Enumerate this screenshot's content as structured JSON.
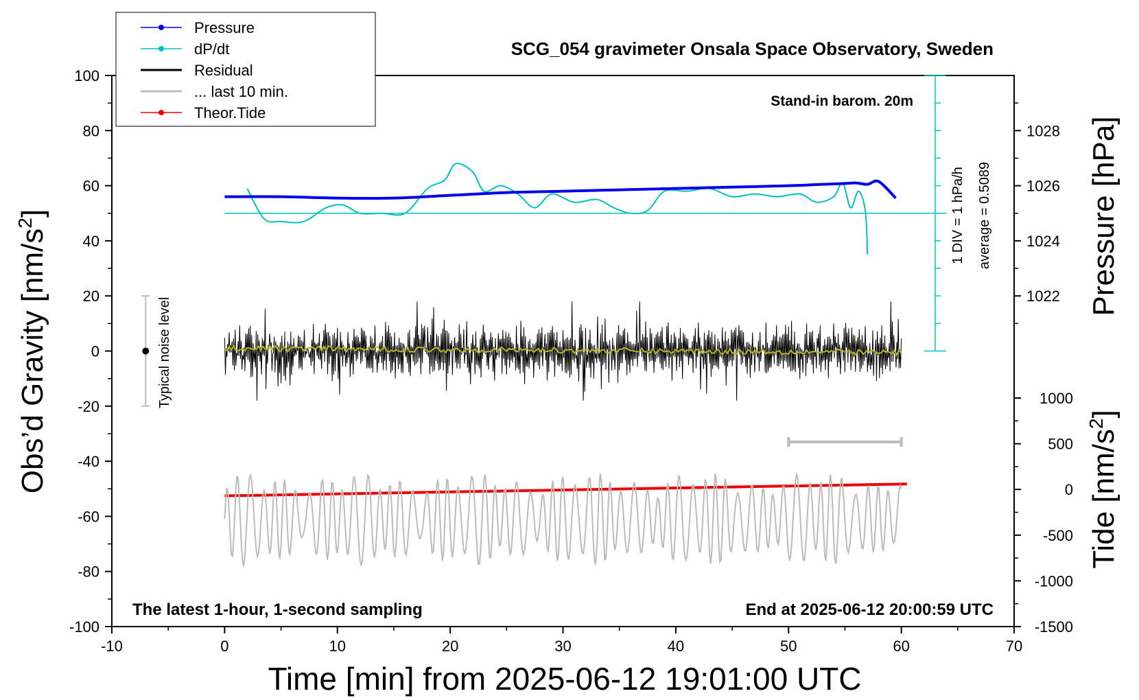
{
  "chart_data": {
    "type": "line",
    "title": "SCG_054 gravimeter Onsala Space Observatory, Sweden",
    "xlabel": "Time [min] from 2025-06-12 19:01:00 UTC",
    "ylabel_left": "Obs’d Gravity [nm/s",
    "ylabel_left_sup": "2",
    "ylabel_left_close": "]",
    "ylabel_right_pressure": "Pressure [hPa]",
    "ylabel_right_tide": "Tide [nm/s",
    "ylabel_right_tide_sup": "2",
    "ylabel_right_tide_close": "]",
    "xlim": [
      -10,
      70
    ],
    "ylim": [
      -100,
      100
    ],
    "pressure_lim": [
      1020,
      1030
    ],
    "tide_lim": [
      -1500,
      1500
    ],
    "x_ticks": [
      "-10",
      "0",
      "10",
      "20",
      "30",
      "40",
      "50",
      "60",
      "70"
    ],
    "y_ticks": [
      "-100",
      "-80",
      "-60",
      "-40",
      "-20",
      "0",
      "20",
      "40",
      "60",
      "80",
      "100"
    ],
    "pressure_ticks": [
      "1022",
      "1024",
      "1026",
      "1028"
    ],
    "tide_ticks": [
      "-1500",
      "-1000",
      "-500",
      "0",
      "500",
      "1000"
    ],
    "grid": false,
    "legend_position": "top-left",
    "legend": [
      {
        "label": "Pressure",
        "color": "#0000ee",
        "marker": true
      },
      {
        "label": "dP/dt",
        "color": "#00c0c0",
        "marker": true
      },
      {
        "label": "Residual",
        "color": "#000000",
        "marker": false
      },
      {
        "label": "... last 10 min.",
        "color": "#bbbbbb",
        "marker": false
      },
      {
        "label": "Theor.Tide",
        "color": "#ee0000",
        "marker": true
      }
    ],
    "annotations": {
      "stand_in": "Stand-in barom. 20m",
      "div_label": "1 DIV = 1 hPa/h",
      "average_label": "average = 0.5089",
      "noise_label": "Typical noise level",
      "bottom_left": "The latest 1-hour, 1-second sampling",
      "bottom_right": "End at 2025-06-12 20:00:59 UTC"
    },
    "noise_bar": {
      "x": -7,
      "center": 0,
      "halfwidth": 20
    },
    "span_bar_last10": {
      "x_start": 50,
      "x_end": 60,
      "y": -33
    },
    "series": [
      {
        "name": "Pressure",
        "color": "#0000ee",
        "unit": "hPa",
        "x": [
          0,
          5,
          10,
          15,
          20,
          25,
          30,
          35,
          40,
          45,
          50,
          53,
          55,
          56,
          57,
          58,
          59.5
        ],
        "y": [
          1025.6,
          1025.6,
          1025.55,
          1025.55,
          1025.65,
          1025.75,
          1025.8,
          1025.85,
          1025.9,
          1025.95,
          1026.0,
          1026.05,
          1026.08,
          1026.1,
          1026.05,
          1026.15,
          1025.55
        ]
      },
      {
        "name": "dP/dt",
        "color": "#00c0c0",
        "unit": "gravity-axis (nm/s²)",
        "baseline": 50,
        "x": [
          2,
          3.5,
          5,
          7,
          9,
          10.5,
          12,
          14,
          16,
          18,
          19.5,
          20.5,
          22,
          23,
          24.5,
          26,
          27.5,
          29,
          31,
          33,
          34.5,
          36,
          37.5,
          39,
          41,
          43,
          45,
          47,
          49,
          51,
          52.5,
          54,
          54.8,
          55.5,
          56.2,
          56.8,
          57
        ],
        "y": [
          59,
          48,
          47,
          47,
          52,
          53,
          50,
          50,
          50,
          59,
          62,
          68,
          65,
          58,
          60,
          57,
          52,
          57,
          54,
          55,
          52,
          50,
          51,
          58,
          58,
          59,
          56,
          57,
          56,
          57,
          54,
          56,
          61,
          52,
          58,
          51,
          35
        ]
      },
      {
        "name": "Residual",
        "color": "#000000",
        "x_start": 0,
        "x_end": 60,
        "mean": 0,
        "amplitude": 18
      },
      {
        "name": "Residual smoothed",
        "color": "#b8b81a",
        "x_start": 0,
        "x_end": 60,
        "mean": 0
      },
      {
        "name": "Theor.Tide",
        "color": "#ee0000",
        "unit": "nm/s²",
        "x": [
          0,
          60
        ],
        "y": [
          -70,
          60
        ]
      },
      {
        "name": "... last 10 min.",
        "color": "#bbbbbb",
        "x_start": 0,
        "x_end": 60,
        "center": -61,
        "amplitude": 18
      }
    ]
  }
}
